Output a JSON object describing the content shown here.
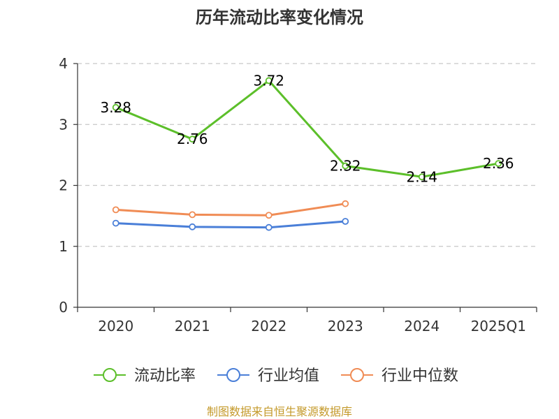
{
  "colors": {
    "current_ratio": "#5cbf2a",
    "industry_avg": "#4a7fd8",
    "industry_median": "#f08c55",
    "source_text": "#c49a2b",
    "grid": "#c8c8c8",
    "axis": "#333333"
  },
  "source": "制图数据来自恒生聚源数据库",
  "chart_data": {
    "type": "line",
    "title": "历年流动比率变化情况",
    "xlabel": "",
    "ylabel": "",
    "categories": [
      "2020",
      "2021",
      "2022",
      "2023",
      "2024",
      "2025Q1"
    ],
    "ylim": [
      0,
      4
    ],
    "yticks": [
      0,
      1,
      2,
      3,
      4
    ],
    "grid": true,
    "legend_position": "bottom",
    "series": [
      {
        "name": "流动比率",
        "color_key": "current_ratio",
        "values": [
          3.28,
          2.76,
          3.72,
          2.32,
          2.14,
          2.36
        ],
        "labels": [
          "3.28",
          "2.76",
          "3.72",
          "2.32",
          "2.14",
          "2.36"
        ],
        "show_labels": true
      },
      {
        "name": "行业均值",
        "color_key": "industry_avg",
        "values": [
          1.38,
          1.32,
          1.31,
          1.41,
          null,
          null
        ],
        "show_labels": false
      },
      {
        "name": "行业中位数",
        "color_key": "industry_median",
        "values": [
          1.6,
          1.52,
          1.51,
          1.7,
          null,
          null
        ],
        "show_labels": false
      }
    ]
  }
}
